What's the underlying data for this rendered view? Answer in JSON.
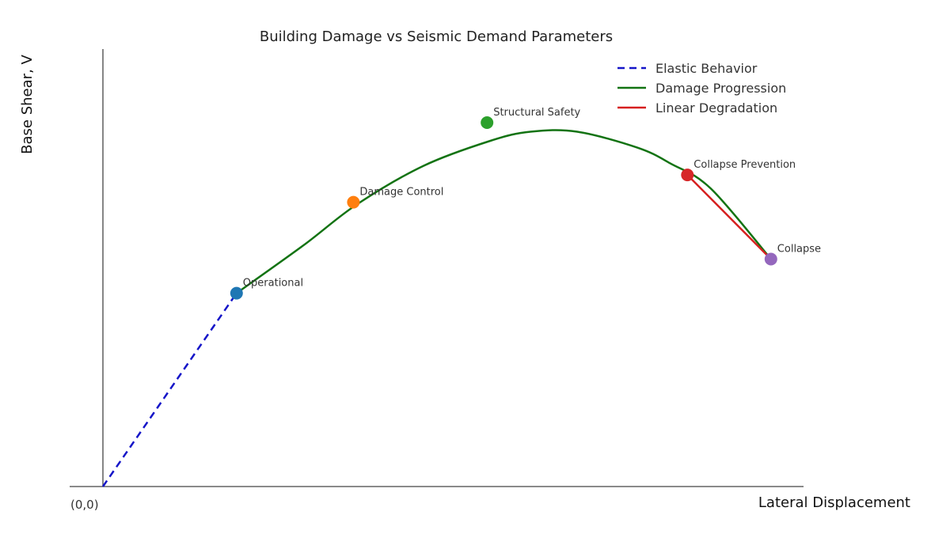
{
  "chart_data": {
    "type": "line",
    "title": "Building Damage vs Seismic Demand Parameters",
    "xlabel": "Lateral Displacement",
    "ylabel": "Base Shear, V",
    "origin_label": "(0,0)",
    "xlim": [
      0,
      10.5
    ],
    "ylim": [
      0,
      10
    ],
    "grid": false,
    "axis_ticks": false,
    "legend_position": "top-right",
    "series": [
      {
        "name": "Elastic Behavior",
        "style": "dashed",
        "color": "#1515c8",
        "x": [
          0,
          2.0
        ],
        "y": [
          0,
          4.25
        ]
      },
      {
        "name": "Damage Progression",
        "style": "solid",
        "color": "#137313",
        "x": [
          2.0,
          3.0,
          3.8,
          4.8,
          5.8,
          6.4,
          7.1,
          8.0,
          8.5,
          9.1,
          10.0
        ],
        "y": [
          4.25,
          5.3,
          6.2,
          7.05,
          7.6,
          7.8,
          7.8,
          7.45,
          7.1,
          6.55,
          5.0
        ]
      },
      {
        "name": "Linear Degradation",
        "style": "solid",
        "color": "#d62020",
        "x": [
          8.75,
          10.0
        ],
        "y": [
          6.85,
          5.0
        ]
      }
    ],
    "points": [
      {
        "label": "Operational",
        "x": 2.0,
        "y": 4.25,
        "color": "#1f77b4"
      },
      {
        "label": "Damage Control",
        "x": 3.75,
        "y": 6.25,
        "color": "#ff7f0e"
      },
      {
        "label": "Structural Safety",
        "x": 5.75,
        "y": 8.0,
        "color": "#2ca02c"
      },
      {
        "label": "Collapse Prevention",
        "x": 8.75,
        "y": 6.85,
        "color": "#d62728"
      },
      {
        "label": "Collapse",
        "x": 10.0,
        "y": 5.0,
        "color": "#9467bd"
      }
    ]
  }
}
